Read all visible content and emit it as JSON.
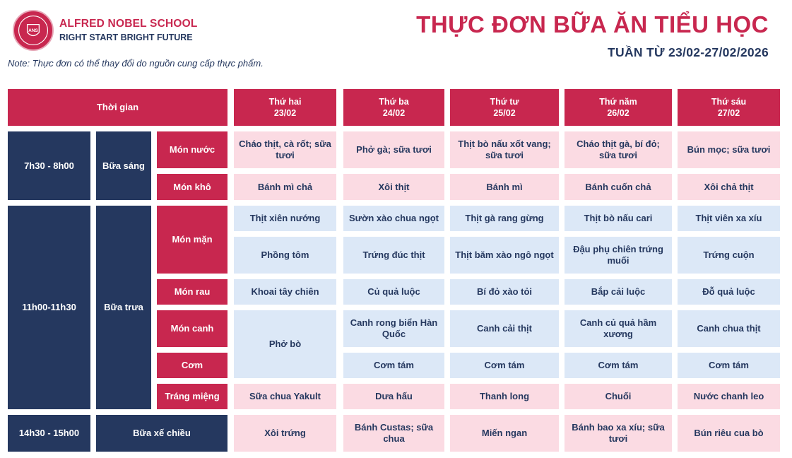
{
  "header": {
    "logo_text": "ANS",
    "school_name": "ALFRED NOBEL SCHOOL",
    "tagline": "RIGHT START  BRIGHT FUTURE",
    "title": "THỰC ĐƠN BỮA ĂN TIỂU HỌC",
    "week": "TUẦN TỪ 23/02-27/02/2026",
    "note": "Note: Thực đơn có thể thay đổi do nguồn cung cấp thực phẩm."
  },
  "table": {
    "time_header": "Thời gian",
    "days": [
      {
        "name": "Thứ hai",
        "date": "23/02"
      },
      {
        "name": "Thứ ba",
        "date": "24/02"
      },
      {
        "name": "Thứ tư",
        "date": "25/02"
      },
      {
        "name": "Thứ năm",
        "date": "26/02"
      },
      {
        "name": "Thứ sáu",
        "date": "27/02"
      }
    ],
    "times": [
      "7h30 - 8h00",
      "11h00-11h30",
      "14h30 - 15h00"
    ],
    "meals": [
      "Bữa sáng",
      "Bữa trưa",
      "Bữa xế chiều"
    ],
    "categories": [
      "Món nước",
      "Món khô",
      "Món mặn",
      "Món rau",
      "Món canh",
      "Cơm",
      "Tráng miệng"
    ],
    "rows": {
      "mon_nuoc": [
        "Cháo thịt, cà rốt; sữa tươi",
        "Phở gà; sữa tươi",
        "Thịt bò nấu xốt vang; sữa tươi",
        "Cháo thịt gà, bí đỏ; sữa tươi",
        "Bún mọc; sữa tươi"
      ],
      "mon_kho": [
        "Bánh mì chả",
        "Xôi thịt",
        "Bánh mì",
        "Bánh cuốn chả",
        "Xôi chả thịt"
      ],
      "mon_man_1": [
        "Thịt xiên nướng",
        "Sườn xào chua ngọt",
        "Thịt gà rang gừng",
        "Thịt bò nấu cari",
        "Thịt viên xa xíu"
      ],
      "mon_man_2": [
        "Phồng tôm",
        "Trứng đúc thịt",
        "Thịt  băm xào ngô ngọt",
        "Đậu phụ chiên trứng muối",
        "Trứng cuộn"
      ],
      "mon_rau": [
        "Khoai tây chiên",
        "Củ quả luộc",
        "Bí đỏ xào tỏi",
        "Bắp cải luộc",
        "Đỗ quả luộc"
      ],
      "mon_canh": [
        "Canh rong biển Hàn Quốc",
        "Canh cải thịt",
        "Canh củ quả hầm xương",
        "Canh chua thịt"
      ],
      "com": [
        "Cơm tám",
        "Cơm tám",
        "Cơm tám",
        "Cơm tám"
      ],
      "pho_bo": "Phở bò",
      "trang_mieng": [
        "Sữa chua Yakult",
        "Dưa hấu",
        "Thanh long",
        "Chuối",
        "Nước chanh leo"
      ],
      "xe_chieu": [
        "Xôi trứng",
        "Bánh Custas; sữa chua",
        "Miến ngan",
        "Bánh bao xa xíu; sữa tươi",
        "Bún riêu cua bò"
      ]
    }
  },
  "colors": {
    "brand_red": "#c8274f",
    "navy": "#25385f",
    "pink_cell": "#fbdbe3",
    "blue_cell": "#dce8f7"
  }
}
